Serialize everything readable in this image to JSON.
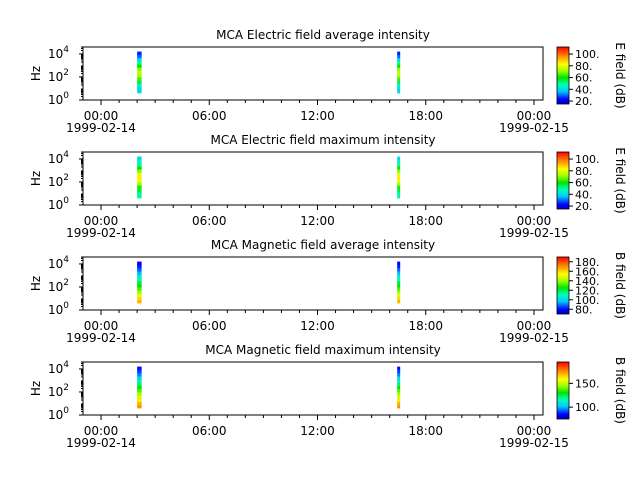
{
  "chart_data": [
    {
      "type": "heatmap",
      "title": "MCA  Electric field average intensity",
      "ylabel": "Hz",
      "colorbar_label": "E field (dB)",
      "colorbar_range": [
        15,
        112
      ],
      "colorbar_ticks": [
        20,
        40,
        60,
        80,
        100
      ],
      "colorbar_tick_labels": [
        "20.",
        "40.",
        "60.",
        "80.",
        "100."
      ],
      "yscale": "log",
      "ylim": [
        1,
        40000
      ],
      "yticks": [
        1,
        100,
        10000
      ],
      "xlim": [
        "1999-02-13T23:00",
        "1999-02-15T00:30"
      ],
      "xticks": [
        "00:00",
        "06:00",
        "12:00",
        "18:00",
        "00:00"
      ],
      "xtick_dates": [
        "1999-02-14",
        "",
        "",
        "",
        "1999-02-15"
      ],
      "data_intervals": [
        {
          "start": "02:00",
          "end": "02:15",
          "profile": [
            40,
            40,
            45,
            55,
            65,
            72,
            75,
            70,
            60,
            50,
            40,
            30,
            25
          ]
        },
        {
          "start": "16:25",
          "end": "16:35",
          "profile": [
            40,
            40,
            45,
            55,
            65,
            72,
            75,
            70,
            60,
            50,
            40,
            30,
            25
          ]
        }
      ]
    },
    {
      "type": "heatmap",
      "title": "MCA  Electric field maximum intensity",
      "ylabel": "Hz",
      "colorbar_label": "E field (dB)",
      "colorbar_range": [
        15,
        112
      ],
      "colorbar_ticks": [
        20,
        40,
        60,
        80,
        100
      ],
      "colorbar_tick_labels": [
        "20.",
        "40.",
        "60.",
        "80.",
        "100."
      ],
      "yscale": "log",
      "ylim": [
        1,
        40000
      ],
      "yticks": [
        1,
        100,
        10000
      ],
      "xlim": [
        "1999-02-13T23:00",
        "1999-02-15T00:30"
      ],
      "xticks": [
        "00:00",
        "06:00",
        "12:00",
        "18:00",
        "00:00"
      ],
      "xtick_dates": [
        "1999-02-14",
        "",
        "",
        "",
        "1999-02-15"
      ],
      "data_intervals": [
        {
          "start": "02:00",
          "end": "02:15",
          "profile": [
            50,
            50,
            55,
            62,
            72,
            80,
            85,
            80,
            70,
            60,
            50,
            45,
            40
          ]
        },
        {
          "start": "16:25",
          "end": "16:35",
          "profile": [
            50,
            50,
            55,
            62,
            72,
            80,
            85,
            80,
            70,
            60,
            50,
            45,
            40
          ]
        }
      ]
    },
    {
      "type": "heatmap",
      "title": "MCA  Magnetic field average intensity",
      "ylabel": "Hz",
      "colorbar_label": "B field (dB)",
      "colorbar_range": [
        70,
        190
      ],
      "colorbar_ticks": [
        80,
        100,
        120,
        140,
        160,
        180
      ],
      "colorbar_tick_labels": [
        "80.",
        "100.",
        "120.",
        "140.",
        "160.",
        "180."
      ],
      "yscale": "log",
      "ylim": [
        1,
        40000
      ],
      "yticks": [
        1,
        100,
        10000
      ],
      "xlim": [
        "1999-02-13T23:00",
        "1999-02-15T00:30"
      ],
      "xticks": [
        "00:00",
        "06:00",
        "12:00",
        "18:00",
        "00:00"
      ],
      "xtick_dates": [
        "1999-02-14",
        "",
        "",
        "",
        "1999-02-15"
      ],
      "data_intervals": [
        {
          "start": "02:00",
          "end": "02:15",
          "profile": [
            165,
            160,
            150,
            140,
            132,
            125,
            120,
            112,
            105,
            95,
            88,
            82,
            78
          ]
        },
        {
          "start": "16:25",
          "end": "16:35",
          "profile": [
            165,
            160,
            150,
            140,
            132,
            125,
            120,
            112,
            105,
            95,
            88,
            82,
            78
          ]
        }
      ]
    },
    {
      "type": "heatmap",
      "title": "MCA  Magnetic field maximum intensity",
      "ylabel": "Hz",
      "colorbar_label": "B field (dB)",
      "colorbar_range": [
        75,
        195
      ],
      "colorbar_ticks": [
        100,
        150
      ],
      "colorbar_tick_labels": [
        "100.",
        "150."
      ],
      "yscale": "log",
      "ylim": [
        1,
        40000
      ],
      "yticks": [
        1,
        100,
        10000
      ],
      "xlim": [
        "1999-02-13T23:00",
        "1999-02-15T00:30"
      ],
      "xticks": [
        "00:00",
        "06:00",
        "12:00",
        "18:00",
        "00:00"
      ],
      "xtick_dates": [
        "1999-02-14",
        "",
        "",
        "",
        "1999-02-15"
      ],
      "data_intervals": [
        {
          "start": "02:00",
          "end": "02:15",
          "profile": [
            175,
            170,
            162,
            152,
            145,
            138,
            130,
            122,
            112,
            104,
            96,
            90,
            86
          ]
        },
        {
          "start": "16:25",
          "end": "16:35",
          "profile": [
            175,
            170,
            162,
            152,
            145,
            138,
            130,
            122,
            112,
            104,
            96,
            90,
            86
          ]
        }
      ]
    }
  ]
}
